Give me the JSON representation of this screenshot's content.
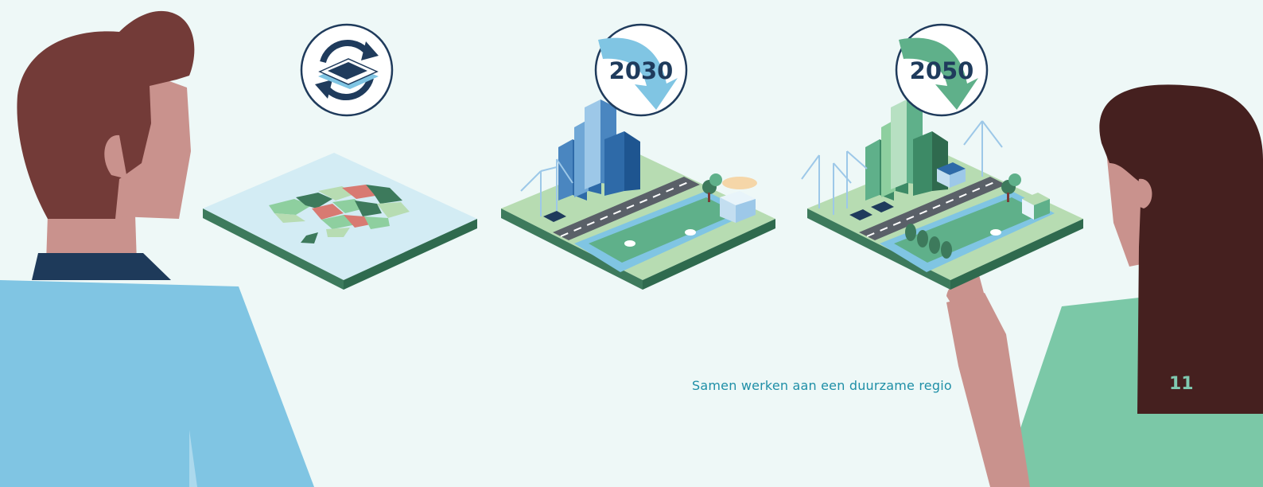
{
  "footer": {
    "caption": "Samen werken aan een duurzame regio",
    "page_number": "11"
  },
  "badges": {
    "year_a": "2030",
    "year_b": "2050"
  },
  "colors": {
    "background": "#eef8f7",
    "navy": "#1f3b5c",
    "dark_green": "#3d7a5c",
    "light_green": "#b7dcb2",
    "blue_shirt": "#80c5e3",
    "green_shirt": "#7bc8a7",
    "skin": "#c9928d",
    "hair_brown": "#733b38",
    "hair_dark": "#45201f",
    "footer_text": "#1f8fa7",
    "page_number": "#7fc9b0"
  }
}
